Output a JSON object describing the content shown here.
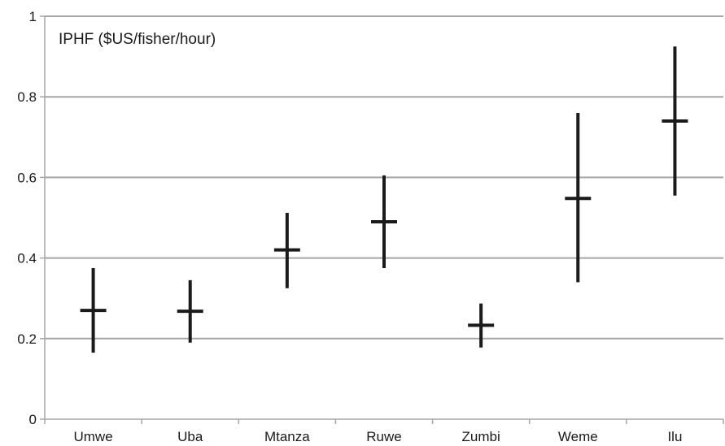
{
  "chart_data": {
    "type": "range",
    "title": "IPHF ($US/fisher/hour)",
    "xlabel": "",
    "ylabel": "",
    "ylim": [
      0,
      1
    ],
    "yticks": [
      0,
      0.2,
      0.4,
      0.6,
      0.8,
      1
    ],
    "ytick_labels": [
      "0",
      "0.2",
      "0.4",
      "0.6",
      "0.8",
      "1"
    ],
    "grid": true,
    "categories": [
      "Umwe",
      "Uba",
      "Mtanza",
      "Ruwe",
      "Zumbi",
      "Weme",
      "Ilu"
    ],
    "series": [
      {
        "values": [
          0.27,
          0.268,
          0.42,
          0.49,
          0.233,
          0.548,
          0.74
        ]
      }
    ],
    "low": [
      0.165,
      0.19,
      0.325,
      0.375,
      0.178,
      0.34,
      0.555
    ],
    "high": [
      0.375,
      0.345,
      0.512,
      0.605,
      0.287,
      0.76,
      0.925
    ],
    "colors": {
      "grid": "#a6a6a6",
      "axis": "#a6a6a6",
      "mark": "#1a1a1a"
    }
  }
}
